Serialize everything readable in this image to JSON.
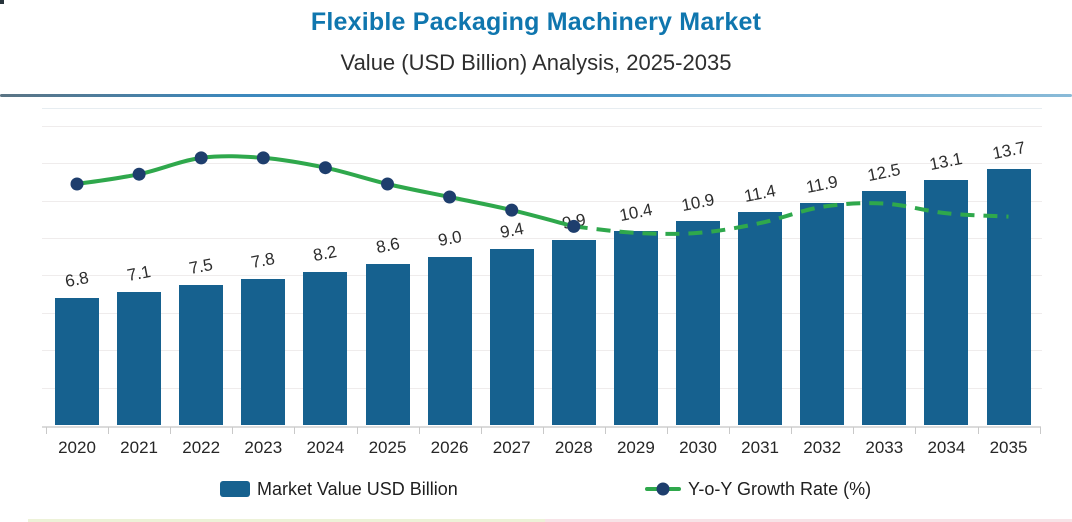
{
  "header": {
    "title": "Flexible Packaging Machinery Market",
    "subtitle": "Value (USD Billion) Analysis, 2025-2035"
  },
  "colors": {
    "title": "#0f76ae",
    "bar": "#16618f",
    "line": "#2fa84c",
    "marker": "#1e3e6d",
    "divider": "#3c88bd",
    "grid": "#efecec",
    "axis": "#d9d9d9",
    "text": "#2b2b2b",
    "bottom_accent_left": "#edf2d8",
    "bottom_accent_right": "#f7e3e7"
  },
  "legend": {
    "items": [
      {
        "label": "Market Value USD Billion",
        "swatch": "bar-square"
      },
      {
        "label": "Y-o-Y Growth Rate (%)",
        "swatch": "line-with-marker"
      }
    ]
  },
  "chart_data": {
    "type": "bar",
    "subtype": "bar+line combo",
    "title": "Flexible Packaging Machinery Market",
    "subtitle": "Value (USD Billion) Analysis, 2025-2035",
    "categories": [
      "2020",
      "2021",
      "2022",
      "2023",
      "2024",
      "2025",
      "2026",
      "2027",
      "2028",
      "2029",
      "2030",
      "2031",
      "2032",
      "2033",
      "2034",
      "2035"
    ],
    "series": [
      {
        "name": "Market Value USD Billion",
        "type": "bar",
        "color": "#16618f",
        "values": [
          6.8,
          7.1,
          7.5,
          7.8,
          8.2,
          8.6,
          9.0,
          9.4,
          9.9,
          10.4,
          10.9,
          11.4,
          11.9,
          12.5,
          13.1,
          13.7
        ],
        "data_labels": "shown above each bar, slightly rotated"
      },
      {
        "name": "Y-o-Y Growth Rate (%)",
        "type": "line",
        "color": "#2fa84c",
        "marker_color": "#1e3e6d",
        "line_style": "solid with round markers 2020-2028, dashed without markers 2028-2035",
        "axis": "secondary (no visible scale; values estimated from line position)",
        "values": [
          5.0,
          5.3,
          5.8,
          5.8,
          5.5,
          5.0,
          4.6,
          4.2,
          3.7,
          3.5,
          3.5,
          3.8,
          4.3,
          4.4,
          4.1,
          4.0
        ]
      }
    ],
    "xlabel": "",
    "ylabel": "",
    "ylim": [
      0,
      17
    ],
    "grid": "faint horizontal gridlines",
    "legend_position": "bottom center",
    "y_axis_labels_visible": false
  }
}
